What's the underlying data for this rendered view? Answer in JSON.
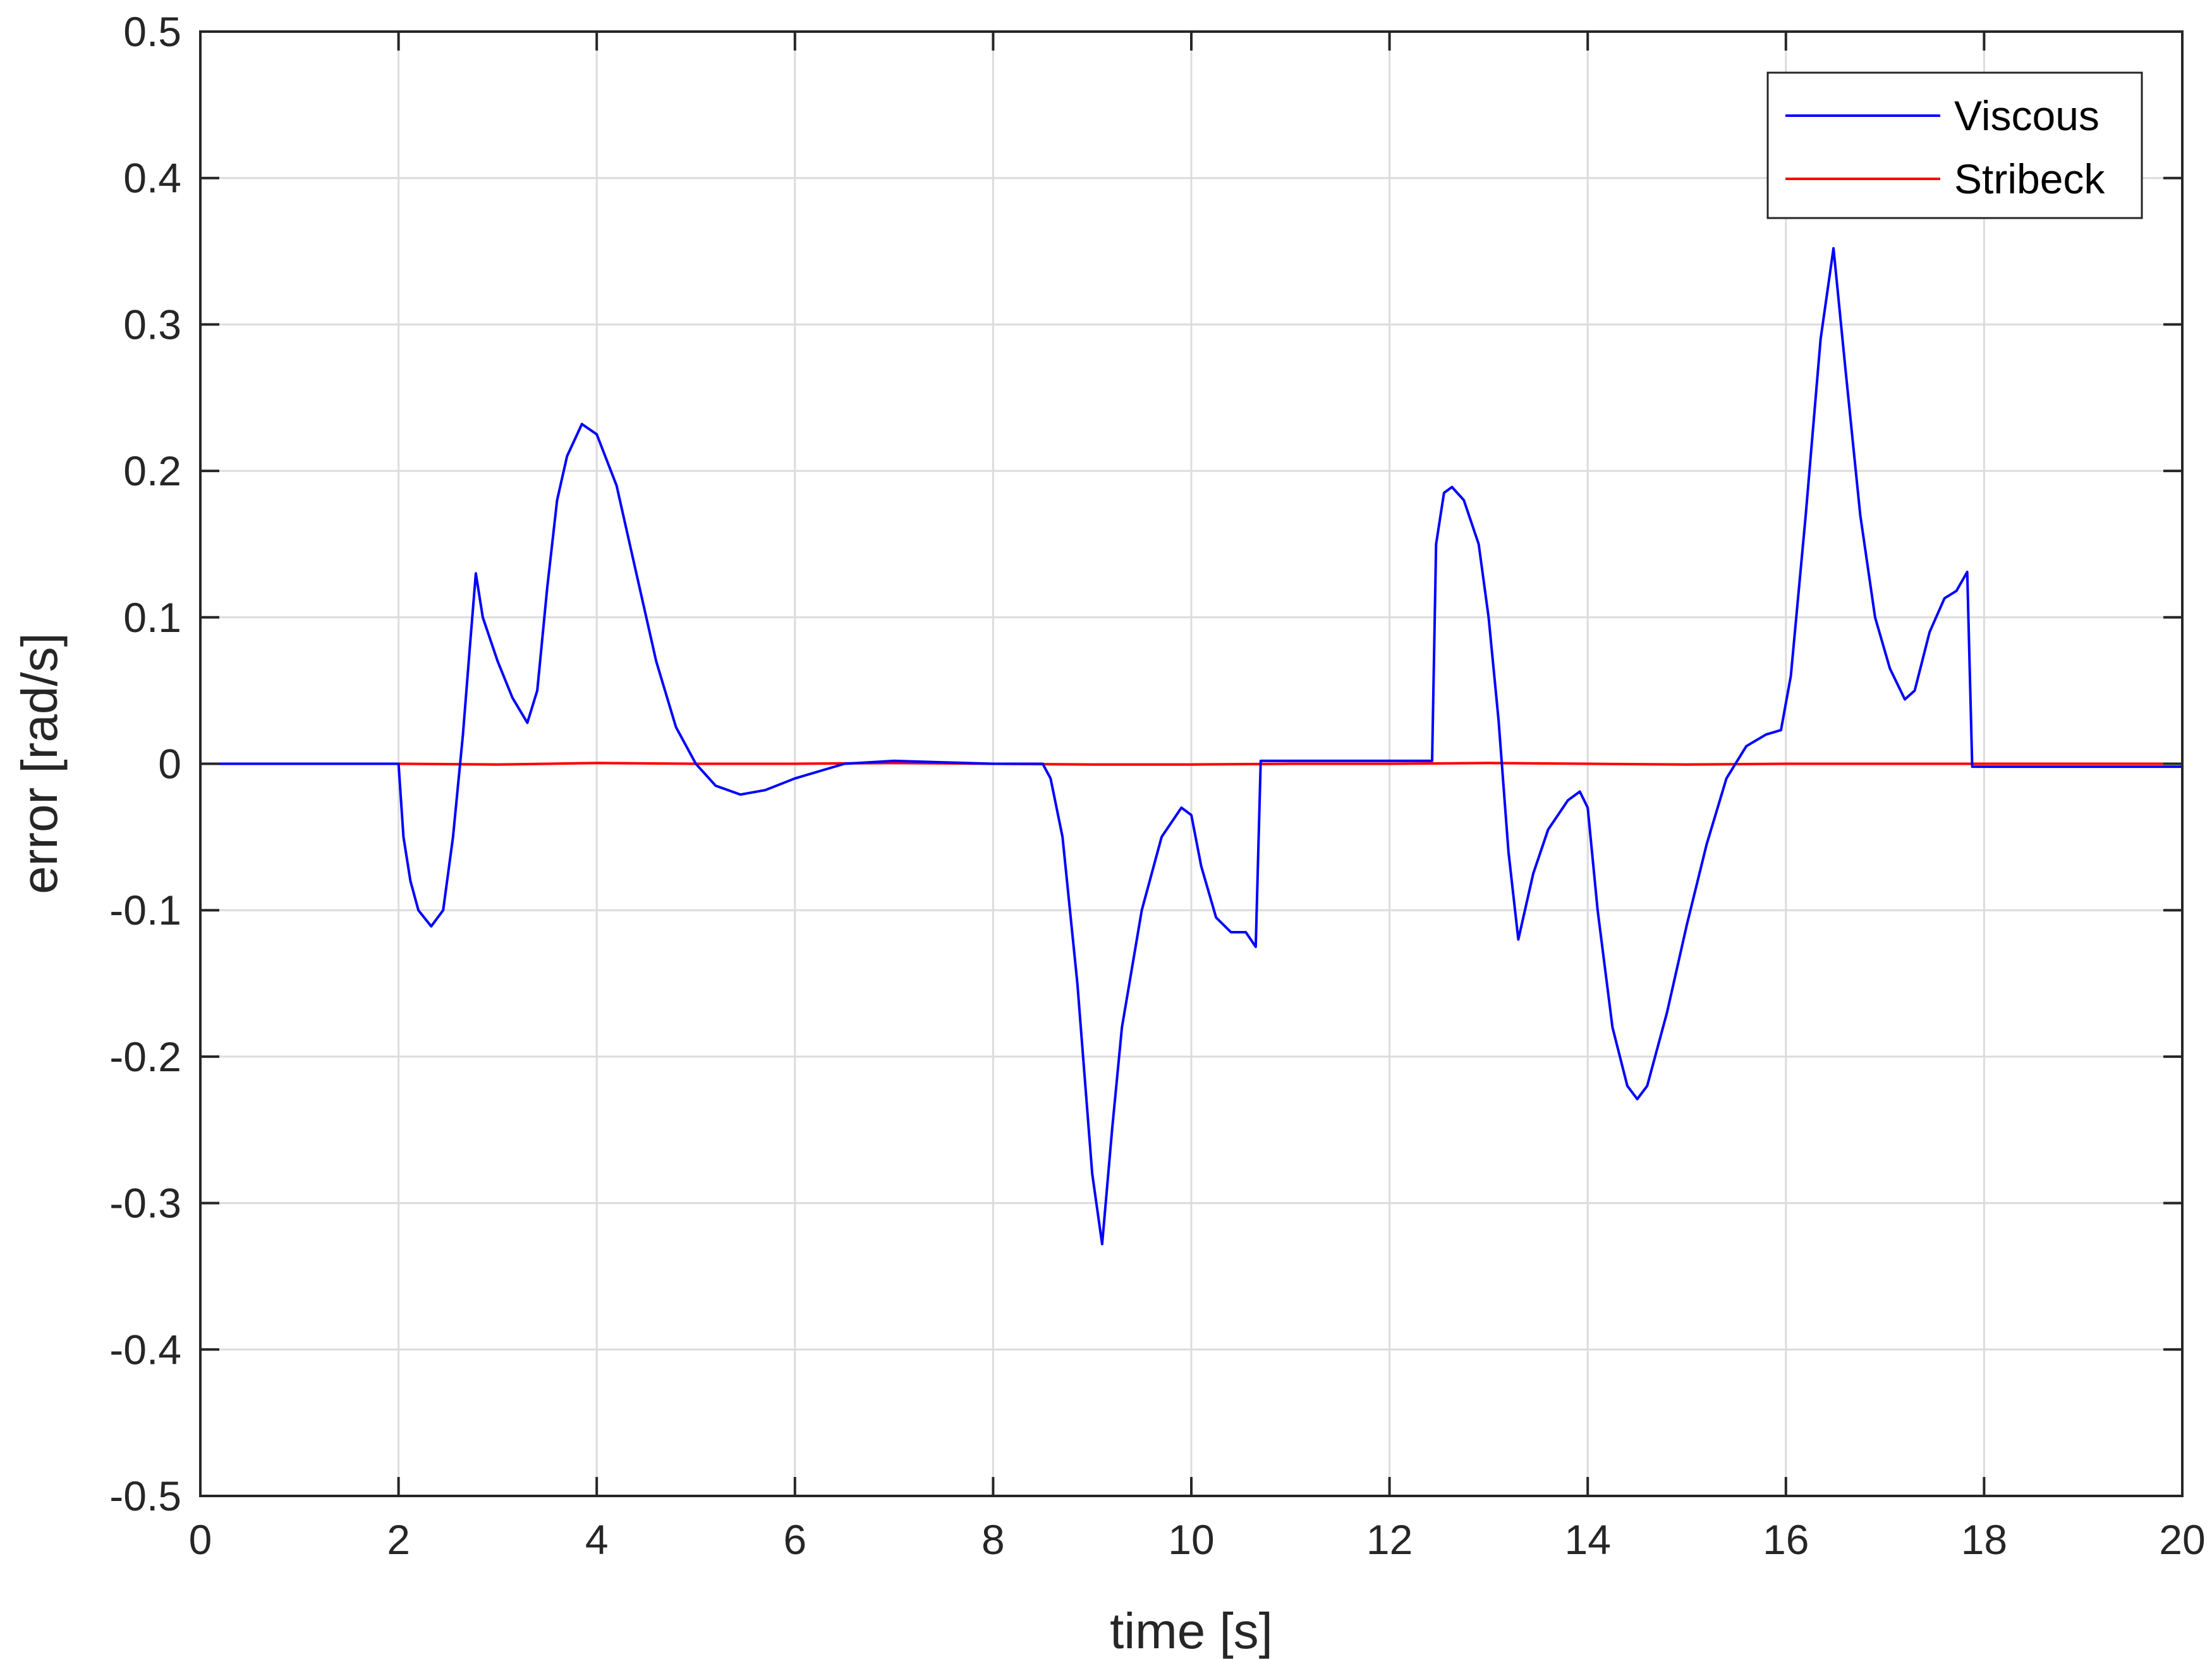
{
  "chart_data": {
    "type": "line",
    "xlabel": "time [s]",
    "ylabel": "error [rad/s]",
    "xlim": [
      0,
      20
    ],
    "ylim": [
      -0.5,
      0.5
    ],
    "x_ticks": [
      0,
      2,
      4,
      6,
      8,
      10,
      12,
      14,
      16,
      18,
      20
    ],
    "y_ticks": [
      -0.5,
      -0.4,
      -0.3,
      -0.2,
      -0.1,
      0,
      0.1,
      0.2,
      0.3,
      0.4,
      0.5
    ],
    "x_tick_labels": [
      "0",
      "2",
      "4",
      "6",
      "8",
      "10",
      "12",
      "14",
      "16",
      "18",
      "20"
    ],
    "y_tick_labels": [
      "-0.5",
      "-0.4",
      "-0.3",
      "-0.2",
      "-0.1",
      "0",
      "0.1",
      "0.2",
      "0.3",
      "0.4",
      "0.5"
    ],
    "grid": true,
    "legend_position": "top-right",
    "series": [
      {
        "name": "Viscous",
        "color": "#0000ff",
        "points": [
          [
            0,
            0
          ],
          [
            2.0,
            0
          ],
          [
            2.05,
            -0.05
          ],
          [
            2.12,
            -0.08
          ],
          [
            2.2,
            -0.1
          ],
          [
            2.33,
            -0.111
          ],
          [
            2.45,
            -0.1
          ],
          [
            2.55,
            -0.05
          ],
          [
            2.65,
            0.02
          ],
          [
            2.72,
            0.08
          ],
          [
            2.78,
            0.13
          ],
          [
            2.85,
            0.1
          ],
          [
            3.0,
            0.07
          ],
          [
            3.15,
            0.045
          ],
          [
            3.3,
            0.028
          ],
          [
            3.4,
            0.05
          ],
          [
            3.5,
            0.12
          ],
          [
            3.6,
            0.18
          ],
          [
            3.7,
            0.21
          ],
          [
            3.85,
            0.232
          ],
          [
            4.0,
            0.225
          ],
          [
            4.2,
            0.19
          ],
          [
            4.4,
            0.13
          ],
          [
            4.6,
            0.07
          ],
          [
            4.8,
            0.025
          ],
          [
            5.0,
            0.0
          ],
          [
            5.2,
            -0.015
          ],
          [
            5.45,
            -0.021
          ],
          [
            5.7,
            -0.018
          ],
          [
            6.0,
            -0.01
          ],
          [
            6.5,
            0.0
          ],
          [
            7.0,
            0.002
          ],
          [
            7.5,
            0.001
          ],
          [
            8.0,
            0.0
          ],
          [
            8.5,
            0.0
          ],
          [
            8.58,
            -0.01
          ],
          [
            8.7,
            -0.05
          ],
          [
            8.85,
            -0.15
          ],
          [
            9.0,
            -0.28
          ],
          [
            9.1,
            -0.328
          ],
          [
            9.2,
            -0.25
          ],
          [
            9.3,
            -0.18
          ],
          [
            9.5,
            -0.1
          ],
          [
            9.7,
            -0.05
          ],
          [
            9.9,
            -0.03
          ],
          [
            10.0,
            -0.035
          ],
          [
            10.1,
            -0.07
          ],
          [
            10.25,
            -0.105
          ],
          [
            10.4,
            -0.115
          ],
          [
            10.55,
            -0.115
          ],
          [
            10.65,
            -0.125
          ],
          [
            10.7,
            0.002
          ],
          [
            12.0,
            0.002
          ],
          [
            12.43,
            0.002
          ],
          [
            12.47,
            0.15
          ],
          [
            12.55,
            0.185
          ],
          [
            12.63,
            0.189
          ],
          [
            12.75,
            0.18
          ],
          [
            12.9,
            0.15
          ],
          [
            13.0,
            0.1
          ],
          [
            13.1,
            0.03
          ],
          [
            13.2,
            -0.06
          ],
          [
            13.3,
            -0.12
          ],
          [
            13.45,
            -0.075
          ],
          [
            13.6,
            -0.045
          ],
          [
            13.8,
            -0.025
          ],
          [
            13.92,
            -0.019
          ],
          [
            14.0,
            -0.03
          ],
          [
            14.1,
            -0.1
          ],
          [
            14.25,
            -0.18
          ],
          [
            14.4,
            -0.22
          ],
          [
            14.5,
            -0.229
          ],
          [
            14.6,
            -0.22
          ],
          [
            14.8,
            -0.17
          ],
          [
            15.0,
            -0.11
          ],
          [
            15.2,
            -0.055
          ],
          [
            15.4,
            -0.01
          ],
          [
            15.6,
            0.012
          ],
          [
            15.8,
            0.02
          ],
          [
            15.95,
            0.023
          ],
          [
            16.05,
            0.06
          ],
          [
            16.2,
            0.17
          ],
          [
            16.35,
            0.29
          ],
          [
            16.48,
            0.352
          ],
          [
            16.6,
            0.27
          ],
          [
            16.75,
            0.17
          ],
          [
            16.9,
            0.1
          ],
          [
            17.05,
            0.065
          ],
          [
            17.2,
            0.044
          ],
          [
            17.3,
            0.05
          ],
          [
            17.45,
            0.09
          ],
          [
            17.6,
            0.113
          ],
          [
            17.72,
            0.118
          ],
          [
            17.83,
            0.131
          ],
          [
            17.88,
            -0.002
          ],
          [
            20,
            -0.002
          ]
        ]
      },
      {
        "name": "Stribeck",
        "color": "#ff0000",
        "points": [
          [
            0,
            0
          ],
          [
            2,
            0
          ],
          [
            3,
            -0.0005
          ],
          [
            4,
            0.0005
          ],
          [
            5,
            0
          ],
          [
            6,
            0
          ],
          [
            7,
            0.0005
          ],
          [
            8,
            0
          ],
          [
            9,
            -0.0005
          ],
          [
            10,
            -0.0005
          ],
          [
            11,
            0
          ],
          [
            12,
            0
          ],
          [
            13,
            0.0005
          ],
          [
            14,
            0
          ],
          [
            15,
            -0.0005
          ],
          [
            16,
            0
          ],
          [
            17,
            0
          ],
          [
            18,
            0
          ],
          [
            19,
            0
          ],
          [
            20,
            0
          ]
        ]
      }
    ]
  }
}
